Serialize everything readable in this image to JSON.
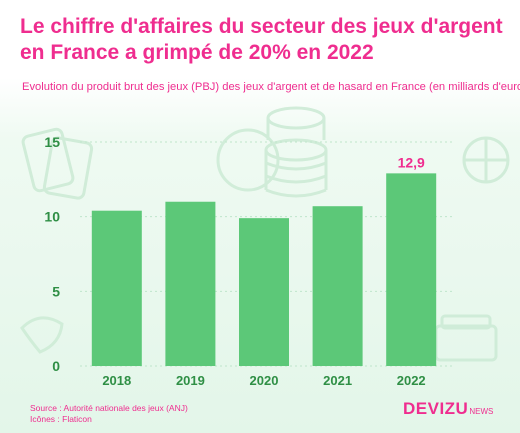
{
  "title": {
    "line1": "Le chiffre d'affaires du secteur des jeux d'argent",
    "line2": "en France a grimpé de 20% en 2022"
  },
  "subtitle": "Evolution du produit brut des jeux (PBJ) des jeux d'argent et de hasard en France (en milliards d'euros)",
  "source": {
    "line1": "Source : Autorité nationale des jeux (ANJ)",
    "line2": "Icônes : Flaticon"
  },
  "brand": {
    "name": "DEVIZU",
    "suffix": "NEWS"
  },
  "colors": {
    "bar": "#5cc878",
    "accent": "#ef2d8f",
    "axis_text": "#2f8f45",
    "grid": "#bfe6cb"
  },
  "chart_data": {
    "type": "bar",
    "categories": [
      "2018",
      "2019",
      "2020",
      "2021",
      "2022"
    ],
    "values": [
      10.4,
      11.0,
      9.9,
      10.7,
      12.9
    ],
    "data_labels": [
      {
        "index": 4,
        "text": "12,9"
      }
    ],
    "yticks": [
      "0",
      "5",
      "10",
      "15"
    ],
    "ylim": [
      0,
      15
    ],
    "grid": true,
    "title": "Le chiffre d'affaires du secteur des jeux d'argent en France a grimpé de 20% en 2022",
    "xlabel": "",
    "ylabel": ""
  }
}
